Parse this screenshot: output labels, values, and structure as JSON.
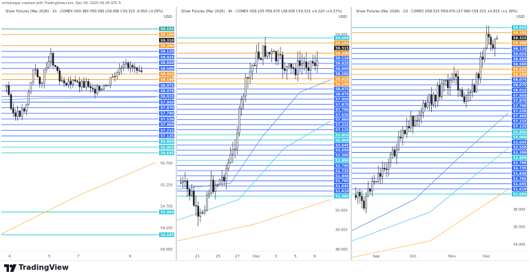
{
  "credit": "erlisbregar created with TradingView.com, Dec 09, 2025 09:28 UTC-5",
  "brand": "TradingView",
  "panels": [
    {
      "title": "Silver Futures (Mar 2026) · 1h · COMEX  O59.380  H59.390  L59.090  C59.310  -0.055 (-0.09%)",
      "currency": "USD",
      "axis_ticks": [
        "59.000",
        "58.250",
        "57.500",
        "56.950",
        "56.300",
        "56.000",
        "55.700",
        "55.250",
        "54.700",
        "54.250",
        "54.000"
      ],
      "price_labels": [
        {
          "text": "59.155",
          "color": "#26a69a"
        },
        {
          "text": "59.100",
          "color": "#f7931a"
        },
        {
          "text": "59.310",
          "color": "#131722"
        },
        {
          "text": "59.200",
          "color": "#f7931a"
        },
        {
          "text": "59.110",
          "color": "#2962ff"
        },
        {
          "text": "59.025",
          "color": "#2962ff"
        },
        {
          "text": "58.660",
          "color": "#2962ff"
        },
        {
          "text": "58.580",
          "color": "#2962ff"
        },
        {
          "text": "58.425",
          "color": "#f7931a"
        },
        {
          "text": "58.190",
          "color": "#f7931a"
        },
        {
          "text": "58.075",
          "color": "#2962ff"
        },
        {
          "text": "58.070",
          "color": "#2962ff"
        },
        {
          "text": "58.015",
          "color": "#2962ff"
        },
        {
          "text": "57.950",
          "color": "#2962ff"
        },
        {
          "text": "57.870",
          "color": "#2962ff"
        },
        {
          "text": "57.790",
          "color": "#2962ff"
        },
        {
          "text": "57.530",
          "color": "#2962ff"
        },
        {
          "text": "57.460",
          "color": "#2962ff"
        },
        {
          "text": "57.215",
          "color": "#2962ff"
        },
        {
          "text": "57.125",
          "color": "#2962ff"
        },
        {
          "text": "56.850",
          "color": "#26c6da"
        },
        {
          "text": "55.060",
          "color": "#26c6da"
        },
        {
          "text": "54.645",
          "color": "#26c6da"
        }
      ],
      "x_labels": [
        "4",
        "5",
        "7",
        "9"
      ]
    },
    {
      "title": "Silver Futures (Mar 2026) · 4h · COMEX  O59.105  H59.470  L58.935  C59.315  +0.220 (+0.37%)",
      "currency": "USD",
      "axis_ticks": [
        "59.000",
        "58.000",
        "57.000",
        "56.000",
        "55.000",
        "54.000",
        "53.000",
        "52.000",
        "51.000",
        "50.000",
        "49.000",
        "48.000"
      ],
      "price_labels": [
        {
          "text": "59.695",
          "color": "#26c6da"
        },
        {
          "text": "59.155",
          "color": "#f7931a"
        },
        {
          "text": "59.315",
          "color": "#131722"
        },
        {
          "text": "59.300",
          "color": "#f7931a"
        },
        {
          "text": "59.110",
          "color": "#2962ff"
        },
        {
          "text": "59.025",
          "color": "#2962ff"
        },
        {
          "text": "58.660",
          "color": "#2962ff"
        },
        {
          "text": "58.580",
          "color": "#2962ff"
        },
        {
          "text": "58.425",
          "color": "#f7931a"
        },
        {
          "text": "58.190",
          "color": "#f7931a"
        },
        {
          "text": "58.075",
          "color": "#2962ff"
        },
        {
          "text": "58.070",
          "color": "#2962ff"
        },
        {
          "text": "57.950",
          "color": "#2962ff"
        },
        {
          "text": "57.870",
          "color": "#2962ff"
        },
        {
          "text": "57.790",
          "color": "#2962ff"
        },
        {
          "text": "57.530",
          "color": "#2962ff"
        },
        {
          "text": "57.460",
          "color": "#2962ff"
        },
        {
          "text": "57.215",
          "color": "#2962ff"
        },
        {
          "text": "57.125",
          "color": "#2962ff"
        },
        {
          "text": "55.850",
          "color": "#26c6da"
        },
        {
          "text": "55.060",
          "color": "#26c6da"
        },
        {
          "text": "53.645",
          "color": "#2962ff"
        },
        {
          "text": "53.550",
          "color": "#2962ff"
        },
        {
          "text": "53.390",
          "color": "#2962ff"
        },
        {
          "text": "52.890",
          "color": "#26c6da"
        },
        {
          "text": "52.790",
          "color": "#2962ff"
        },
        {
          "text": "52.735",
          "color": "#2962ff"
        },
        {
          "text": "51.840",
          "color": "#2962ff"
        },
        {
          "text": "51.785",
          "color": "#2962ff"
        },
        {
          "text": "51.645",
          "color": "#2962ff"
        },
        {
          "text": "51.610",
          "color": "#2962ff"
        },
        {
          "text": "51.080",
          "color": "#26c6da"
        }
      ],
      "x_labels": [
        "21",
        "25",
        "27",
        "Dec",
        "3",
        "5",
        "9"
      ]
    },
    {
      "title": "Silver Futures (Mar 2026) · 1D · COMEX  O58.515  H59.470  L57.990  C59.315  +0.815 (+1.39%)",
      "currency": "USD",
      "axis_ticks": [
        "58.000",
        "56.000",
        "54.000",
        "52.000",
        "50.000",
        "48.000",
        "46.000",
        "44.000",
        "42.000",
        "40.000",
        "38.000",
        "36.000",
        "34.000"
      ],
      "price_labels": [
        {
          "text": "59.695",
          "color": "#26c6da"
        },
        {
          "text": "59.155",
          "color": "#f7931a"
        },
        {
          "text": "59.315",
          "color": "#131722"
        },
        {
          "text": "59.300",
          "color": "#f7931a"
        },
        {
          "text": "59.110",
          "color": "#2962ff"
        },
        {
          "text": "59.025",
          "color": "#2962ff"
        },
        {
          "text": "58.660",
          "color": "#2962ff"
        },
        {
          "text": "58.580",
          "color": "#2962ff"
        },
        {
          "text": "58.425",
          "color": "#f7931a"
        },
        {
          "text": "58.190",
          "color": "#f7931a"
        },
        {
          "text": "58.075",
          "color": "#2962ff"
        },
        {
          "text": "58.070",
          "color": "#2962ff"
        },
        {
          "text": "58.015",
          "color": "#2962ff"
        },
        {
          "text": "57.950",
          "color": "#2962ff"
        },
        {
          "text": "57.870",
          "color": "#2962ff"
        },
        {
          "text": "57.790",
          "color": "#2962ff"
        },
        {
          "text": "57.530",
          "color": "#2962ff"
        },
        {
          "text": "57.460",
          "color": "#2962ff"
        },
        {
          "text": "57.215",
          "color": "#2962ff"
        },
        {
          "text": "57.125",
          "color": "#2962ff"
        },
        {
          "text": "55.850",
          "color": "#26c6da"
        },
        {
          "text": "55.060",
          "color": "#26c6da"
        },
        {
          "text": "53.645",
          "color": "#2962ff"
        },
        {
          "text": "53.550",
          "color": "#2962ff"
        },
        {
          "text": "53.390",
          "color": "#2962ff"
        },
        {
          "text": "52.890",
          "color": "#26c6da"
        },
        {
          "text": "52.790",
          "color": "#2962ff"
        },
        {
          "text": "52.735",
          "color": "#2962ff"
        },
        {
          "text": "51.840",
          "color": "#2962ff"
        },
        {
          "text": "51.785",
          "color": "#2962ff"
        },
        {
          "text": "51.645",
          "color": "#2962ff"
        },
        {
          "text": "51.610",
          "color": "#2962ff"
        },
        {
          "text": "51.080",
          "color": "#26c6da"
        }
      ],
      "x_labels": [
        "Sep",
        "Oct",
        "Nov",
        "Dec"
      ]
    }
  ],
  "colors": {
    "up": "#ffffff",
    "down": "#131722",
    "wick": "#131722",
    "blue_line": "#2962ff",
    "cyan_line": "#26c6da",
    "orange_line": "#f7931a",
    "ma_blue": "#5b8def",
    "ma_cyan": "#4fc3f7",
    "ma_orange": "#ffb74d"
  }
}
